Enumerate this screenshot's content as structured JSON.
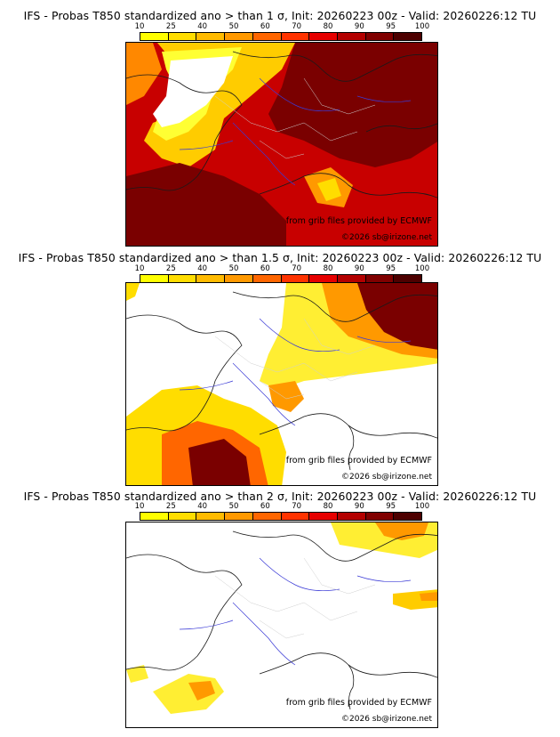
{
  "legend": {
    "ticks": [
      "10",
      "25",
      "40",
      "50",
      "60",
      "70",
      "80",
      "90",
      "95",
      "100"
    ],
    "colors": [
      "#ffff00",
      "#ffdd00",
      "#ffbb00",
      "#ff9900",
      "#ff6600",
      "#ff3300",
      "#e60000",
      "#b30000",
      "#800000",
      "#4d0000"
    ]
  },
  "credits": {
    "source": "from grib files provided by ECMWF",
    "copyright": "©2026 sb@irizone.net"
  },
  "panels": [
    {
      "title": "IFS - Probas T850  standardized ano > than 1 σ, Init: 20260223 00z - Valid: 20260226:12 TU"
    },
    {
      "title": "IFS - Probas T850  standardized ano > than 1.5 σ, Init: 20260223 00z - Valid: 20260226:12 TU"
    },
    {
      "title": "IFS - Probas T850  standardized ano > than 2 σ, Init: 20260223 00z - Valid: 20260226:12 TU"
    }
  ]
}
